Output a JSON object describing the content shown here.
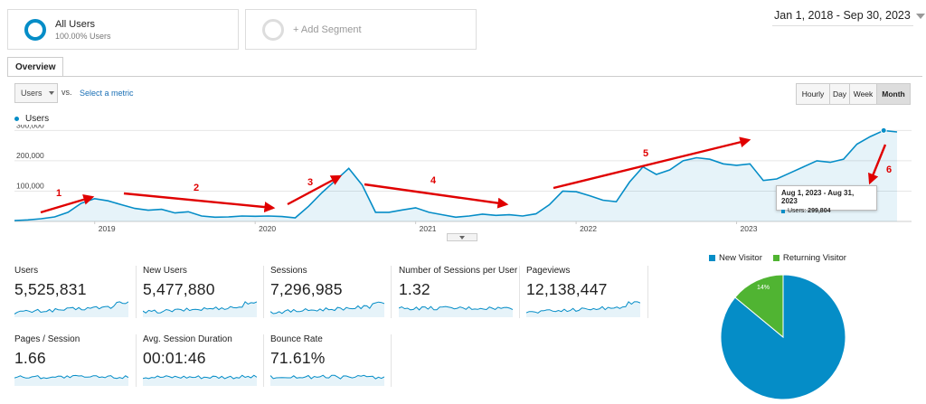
{
  "segments": {
    "active": {
      "title": "All Users",
      "subtitle": "100.00% Users"
    },
    "add_label": "+ Add Segment"
  },
  "date_range": "Jan 1, 2018 - Sep 30, 2023",
  "tabs": [
    "Overview"
  ],
  "metric_select": {
    "value": "Users",
    "vs": "vs.",
    "select_metric": "Select a metric"
  },
  "time_buttons": [
    "Hourly",
    "Day",
    "Week",
    "Month"
  ],
  "active_time_button": "Month",
  "colors": {
    "users": "#058dc7",
    "new_visitor": "#058dc7",
    "returning_visitor": "#50b432",
    "annotation": "#e00000"
  },
  "tooltip": {
    "title": "Aug 1, 2023 - Aug 31, 2023",
    "series": "Users",
    "value": "299,804"
  },
  "chart_data": {
    "type": "area",
    "series": [
      {
        "name": "Users",
        "values": [
          3000,
          5000,
          9000,
          15000,
          30000,
          60000,
          75000,
          68000,
          55000,
          43000,
          37000,
          40000,
          28000,
          32000,
          18000,
          14000,
          15000,
          18000,
          17000,
          18000,
          16000,
          12000,
          50000,
          95000,
          135000,
          175000,
          120000,
          30000,
          30000,
          38000,
          45000,
          30000,
          22000,
          14000,
          18000,
          24000,
          20000,
          22000,
          18000,
          25000,
          55000,
          100000,
          98000,
          85000,
          70000,
          65000,
          130000,
          180000,
          155000,
          170000,
          200000,
          210000,
          205000,
          190000,
          185000,
          190000,
          135000,
          140000,
          160000,
          180000,
          200000,
          195000,
          205000,
          255000,
          280000,
          300000,
          295000
        ]
      }
    ],
    "x_range": [
      "2018-07",
      "2023-09"
    ],
    "x_tick_labels": [
      "2019",
      "2020",
      "2021",
      "2022",
      "2023"
    ],
    "y_tick_labels": [
      "100,000",
      "200,000",
      "300,000"
    ],
    "ylim": [
      0,
      310000
    ],
    "legend": "top-left",
    "annotations": [
      "1",
      "2",
      "3",
      "4",
      "5",
      "6"
    ]
  },
  "metrics": [
    {
      "label": "Users",
      "value": "5,525,831"
    },
    {
      "label": "New Users",
      "value": "5,477,880"
    },
    {
      "label": "Sessions",
      "value": "7,296,985"
    },
    {
      "label": "Number of Sessions per User",
      "value": "1.32"
    },
    {
      "label": "Pageviews",
      "value": "12,138,447"
    },
    {
      "label": "Pages / Session",
      "value": "1.66"
    },
    {
      "label": "Avg. Session Duration",
      "value": "00:01:46"
    },
    {
      "label": "Bounce Rate",
      "value": "71.61%"
    }
  ],
  "pie": {
    "legend": [
      {
        "name": "New Visitor"
      },
      {
        "name": "Returning Visitor"
      }
    ],
    "values": [
      86,
      14
    ],
    "labels": [
      "86%",
      "14%"
    ]
  }
}
